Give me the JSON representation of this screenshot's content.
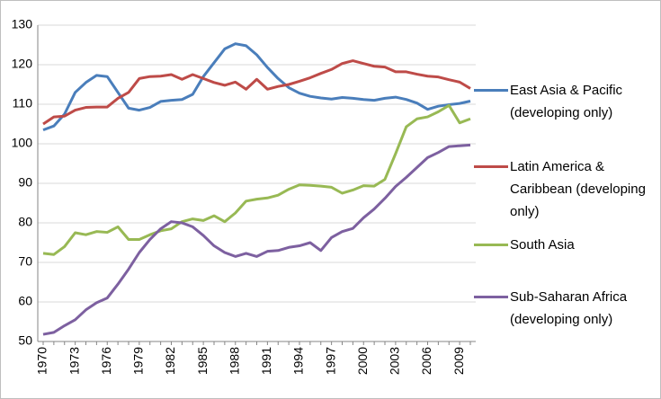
{
  "chart_data": {
    "type": "line",
    "x": [
      1970,
      1971,
      1972,
      1973,
      1974,
      1975,
      1976,
      1977,
      1978,
      1979,
      1980,
      1981,
      1982,
      1983,
      1984,
      1985,
      1986,
      1987,
      1988,
      1989,
      1990,
      1991,
      1992,
      1993,
      1994,
      1995,
      1996,
      1997,
      1998,
      1999,
      2000,
      2001,
      2002,
      2003,
      2004,
      2005,
      2006,
      2007,
      2008,
      2009,
      2010
    ],
    "xlim": [
      1970,
      2010
    ],
    "xticks": [
      1970,
      1973,
      1976,
      1979,
      1982,
      1985,
      1988,
      1991,
      1994,
      1997,
      2000,
      2003,
      2006,
      2009
    ],
    "ylim": [
      50,
      130
    ],
    "yticks": [
      50,
      60,
      70,
      80,
      90,
      100,
      110,
      120,
      130
    ],
    "grid": true,
    "legend": "right",
    "series": [
      {
        "name": "East Asia & Pacific (developing only)",
        "color": "#4a7ebb",
        "values": [
          103.5,
          104.5,
          107.5,
          113,
          115.5,
          117.3,
          117,
          113,
          109,
          108.5,
          109.2,
          110.7,
          111,
          111.2,
          112.5,
          117,
          120.5,
          124,
          125.3,
          124.8,
          122.5,
          119.3,
          116.5,
          114.2,
          112.8,
          112,
          111.6,
          111.3,
          111.7,
          111.5,
          111.2,
          111,
          111.5,
          111.8,
          111.2,
          110.3,
          108.7,
          109.5,
          109.9,
          110.2,
          110.8
        ]
      },
      {
        "name": "Latin America & Caribbean (developing only)",
        "color": "#be4b48",
        "values": [
          105,
          106.8,
          107,
          108.5,
          109.2,
          109.3,
          109.3,
          111.5,
          113,
          116.5,
          117,
          117.1,
          117.5,
          116.3,
          117.5,
          116.5,
          115.5,
          114.8,
          115.6,
          113.8,
          116.3,
          113.8,
          114.5,
          115,
          115.8,
          116.7,
          117.8,
          118.8,
          120.3,
          121,
          120.3,
          119.6,
          119.4,
          118.2,
          118.2,
          117.6,
          117.1,
          116.9,
          116.2,
          115.6,
          114
        ]
      },
      {
        "name": "South Asia",
        "color": "#98b954",
        "values": [
          72.3,
          72,
          74,
          77.5,
          77,
          77.8,
          77.6,
          79,
          75.8,
          75.8,
          77,
          78,
          78.5,
          80.3,
          81,
          80.6,
          81.8,
          80.3,
          82.5,
          85.5,
          86,
          86.3,
          87,
          88.5,
          89.6,
          89.5,
          89.3,
          89,
          87.5,
          88.3,
          89.4,
          89.3,
          91,
          97.5,
          104.3,
          106.3,
          106.8,
          108.1,
          109.7,
          105.3,
          106.3
        ]
      },
      {
        "name": "Sub-Saharan Africa (developing only)",
        "color": "#7d60a0",
        "values": [
          51.8,
          52.3,
          54,
          55.5,
          58,
          59.8,
          61,
          64.5,
          68.3,
          72.5,
          75.8,
          78.5,
          80.3,
          80,
          79,
          76.8,
          74.2,
          72.5,
          71.5,
          72.3,
          71.5,
          72.8,
          73,
          73.8,
          74.2,
          75,
          73,
          76.3,
          77.8,
          78.6,
          81.3,
          83.5,
          86.2,
          89.2,
          91.5,
          94,
          96.5,
          97.8,
          99.3,
          99.5,
          99.7
        ]
      }
    ]
  }
}
